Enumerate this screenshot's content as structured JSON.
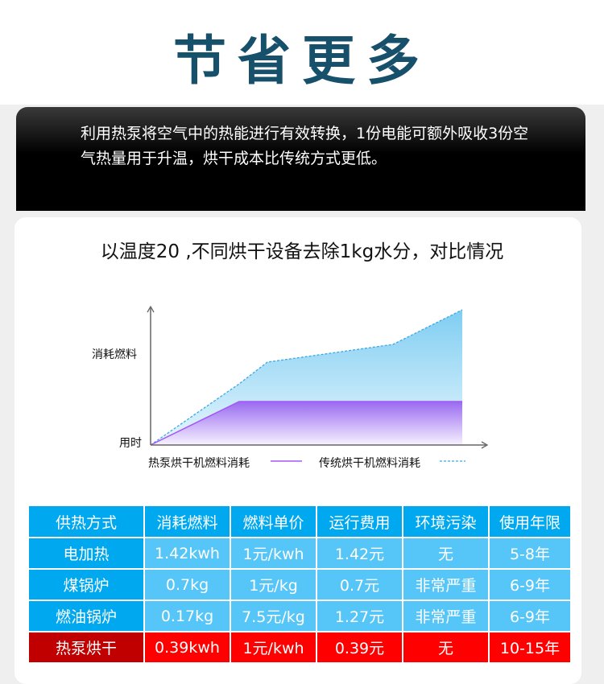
{
  "title": "节省更多",
  "banner_text": "利用热泵将空气中的热能进行有效转换，1份电能可额外吸收3份空气热量用于升温，烘干成本比传统方式更低。",
  "subtitle": "以温度20 ,不同烘干设备去除1kg水分，对比情况",
  "chart": {
    "y_label": "消耗燃料",
    "origin_label": "用时",
    "legend": [
      {
        "name": "热泵烘干机燃料消耗",
        "color": "#a855f7",
        "style": "solid"
      },
      {
        "name": "传统烘干机燃料消耗",
        "color": "#3aa8e8",
        "style": "dashed"
      }
    ]
  },
  "table": {
    "headers": [
      "供热方式",
      "消耗燃料",
      "燃料单价",
      "运行费用",
      "环境污染",
      "使用年限"
    ],
    "rows": [
      [
        "电加热",
        "1.42kwh",
        "1元/kwh",
        "1.42元",
        "无",
        "5-8年"
      ],
      [
        "煤锅炉",
        "0.7kg",
        "1元/kg",
        "0.7元",
        "非常严重",
        "6-9年"
      ],
      [
        "燃油锅炉",
        "0.17kg",
        "7.5元/kg",
        "1.27元",
        "非常严重",
        "6-9年"
      ],
      [
        "热泵烘干",
        "0.39kwh",
        "1元/kwh",
        "0.39元",
        "无",
        "10-15年"
      ]
    ],
    "colors": {
      "header": "#00a8f0",
      "row": "#56c5f7",
      "highlight": "#ff0000",
      "highlight_first": "#c00000"
    }
  }
}
